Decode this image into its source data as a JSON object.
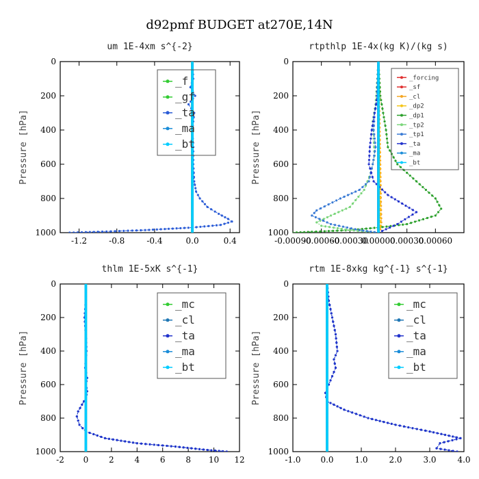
{
  "suptitle": "d92pmf  BUDGET at270E,14N",
  "chart_data": [
    {
      "type": "line",
      "title": "um  1E-4xm s^{-2}",
      "ylabel": "Pressure [hPa]",
      "xlabel": "",
      "xlim": [
        -1.4,
        0.5
      ],
      "ylim": [
        1000,
        0
      ],
      "xticks": [
        -1.2,
        -0.8,
        -0.4,
        0.0,
        0.4
      ],
      "xtick_labels": [
        "-1.2",
        "-0.8",
        "-0.4",
        "0.0",
        "0.4"
      ],
      "yticks": [
        0,
        200,
        400,
        600,
        800,
        1000
      ],
      "ytick_labels": [
        "0",
        "200",
        "400",
        "600",
        "800",
        "1000"
      ],
      "legend": [
        "_f",
        "_gf",
        "_ta",
        "_ma",
        "_bt"
      ],
      "legend_position": "top-right",
      "series": [
        {
          "name": "_f",
          "color": "#33cc33",
          "x": [
            0,
            0
          ],
          "y": [
            0,
            1000
          ]
        },
        {
          "name": "_gf",
          "color": "#33cc33",
          "x": [
            0,
            0
          ],
          "y": [
            0,
            1000
          ]
        },
        {
          "name": "_ta",
          "color": "#2b5cd6",
          "x": [
            0,
            0.01,
            -0.02,
            0.03,
            -0.04,
            0.02,
            0.0,
            0.01,
            0.01,
            0.02,
            0.04,
            0.08,
            0.16,
            0.28,
            0.38,
            0.42,
            0.3,
            0.0,
            -0.5,
            -1.0,
            -1.3
          ],
          "y": [
            0,
            100,
            150,
            200,
            250,
            300,
            400,
            500,
            600,
            700,
            760,
            800,
            850,
            890,
            920,
            935,
            955,
            970,
            985,
            995,
            1000
          ]
        },
        {
          "name": "_ma",
          "color": "#1a8cd8",
          "x": [
            0,
            0
          ],
          "y": [
            0,
            1000
          ]
        },
        {
          "name": "_bt",
          "color": "#00ccff",
          "x": [
            0,
            0
          ],
          "y": [
            0,
            1000
          ]
        }
      ]
    },
    {
      "type": "line",
      "title": "rtpthlp  1E-4x(kg K)/(kg s)",
      "ylabel": "Pressure [hPa]",
      "xlabel": "",
      "xlim": [
        -0.0009,
        0.0009
      ],
      "ylim": [
        1000,
        0
      ],
      "xticks": [
        -0.0009,
        -0.0006,
        -0.0003,
        0.0,
        0.0003,
        0.0006
      ],
      "xtick_labels": [
        "-0.00090",
        "-0.00060",
        "-0.00030",
        "0.00000",
        "0.00030",
        "0.00060"
      ],
      "yticks": [
        0,
        200,
        400,
        600,
        800,
        1000
      ],
      "ytick_labels": [
        "0",
        "200",
        "400",
        "600",
        "800",
        "1000"
      ],
      "legend": [
        "_forcing",
        "_sf",
        "_cl",
        "_dp2",
        "_dp1",
        "_tp2",
        "_tp1",
        "_ta",
        "_ma",
        "_bt"
      ],
      "legend_position": "top-right",
      "series": [
        {
          "name": "_forcing",
          "color": "#e03030",
          "x": [
            0,
            0
          ],
          "y": [
            0,
            1000
          ]
        },
        {
          "name": "_sf",
          "color": "#e03030",
          "x": [
            0,
            0
          ],
          "y": [
            0,
            1000
          ]
        },
        {
          "name": "_cl",
          "color": "#f5a623",
          "x": [
            0,
            3e-05,
            2e-05,
            0.0
          ],
          "y": [
            0,
            940,
            980,
            1000
          ]
        },
        {
          "name": "_dp2",
          "color": "#f5c518",
          "x": [
            0,
            2e-05,
            0.0
          ],
          "y": [
            0,
            960,
            1000
          ]
        },
        {
          "name": "_dp1",
          "color": "#2ca02c",
          "x": [
            0,
            2e-05,
            5e-05,
            8e-05,
            0.0001,
            0.0002,
            0.0004,
            0.0006,
            0.00066,
            0.0006,
            0.0003,
            0.0,
            -0.0003,
            -0.0007,
            -0.0009
          ],
          "y": [
            0,
            200,
            300,
            400,
            500,
            600,
            700,
            800,
            860,
            900,
            950,
            970,
            985,
            995,
            1000
          ]
        },
        {
          "name": "_tp2",
          "color": "#7cd67c",
          "x": [
            0,
            -3e-05,
            -6e-05,
            -5e-05,
            -4e-05,
            -8e-05,
            -0.00015,
            -0.0003,
            -0.0005,
            -0.00065,
            -0.0006,
            -0.0003,
            0.0
          ],
          "y": [
            0,
            250,
            350,
            450,
            550,
            650,
            750,
            850,
            900,
            940,
            960,
            985,
            1000
          ]
        },
        {
          "name": "_tp1",
          "color": "#3a7bd5",
          "x": [
            0,
            -2e-05,
            -4e-05,
            -5e-05,
            -3e-05,
            -6e-05,
            -0.0001,
            -0.0002,
            -0.0004,
            -0.00065,
            -0.0007,
            -0.0005,
            -0.0002,
            0.0
          ],
          "y": [
            0,
            250,
            300,
            400,
            500,
            600,
            700,
            750,
            800,
            870,
            900,
            950,
            985,
            1000
          ]
        },
        {
          "name": "_ta",
          "color": "#2233cc",
          "x": [
            0,
            -1e-05,
            -4e-05,
            -7e-05,
            -9e-05,
            -0.0001,
            -5e-05,
            0.0001,
            0.00025,
            0.0004,
            0.0002,
            0.0
          ],
          "y": [
            0,
            200,
            300,
            400,
            500,
            600,
            700,
            780,
            830,
            880,
            950,
            1000
          ]
        },
        {
          "name": "_ma",
          "color": "#1a8cd8",
          "x": [
            0,
            0
          ],
          "y": [
            0,
            1000
          ]
        },
        {
          "name": "_bt",
          "color": "#00ccff",
          "x": [
            0,
            0
          ],
          "y": [
            0,
            1000
          ]
        }
      ]
    },
    {
      "type": "line",
      "title": "thlm  1E-5xK s^{-1}",
      "ylabel": "Pressure [hPa]",
      "xlabel": "",
      "xlim": [
        -2,
        12
      ],
      "ylim": [
        1000,
        0
      ],
      "xticks": [
        -2,
        0,
        2,
        4,
        6,
        8,
        10,
        12
      ],
      "xtick_labels": [
        "-2",
        "0",
        "2",
        "4",
        "6",
        "8",
        "10",
        "12"
      ],
      "yticks": [
        0,
        200,
        400,
        600,
        800,
        1000
      ],
      "ytick_labels": [
        "0",
        "200",
        "400",
        "600",
        "800",
        "1000"
      ],
      "legend": [
        "_mc",
        "_cl",
        "_ta",
        "_ma",
        "_bt"
      ],
      "legend_position": "top-right",
      "series": [
        {
          "name": "_mc",
          "color": "#33cc33",
          "x": [
            0,
            0
          ],
          "y": [
            0,
            1000
          ]
        },
        {
          "name": "_cl",
          "color": "#1f77b4",
          "x": [
            0,
            0.0,
            -0.1,
            0.0,
            0.05,
            -0.05,
            0.1,
            0.0,
            0.1,
            0.0,
            -0.3,
            -0.6,
            -0.7,
            -0.5,
            0.0,
            1.5,
            4.0,
            7.0,
            9.5,
            11.0
          ],
          "y": [
            0,
            100,
            200,
            300,
            400,
            500,
            560,
            600,
            640,
            680,
            720,
            760,
            790,
            840,
            880,
            920,
            950,
            970,
            990,
            1000
          ]
        },
        {
          "name": "_ta",
          "color": "#2233cc",
          "x": [
            0,
            0.0,
            -0.1,
            0.0,
            0.05,
            -0.05,
            0.1,
            0.0,
            0.1,
            0.0,
            -0.3,
            -0.6,
            -0.7,
            -0.5,
            0.0,
            1.5,
            4.0,
            7.0,
            9.5,
            11.0
          ],
          "y": [
            0,
            100,
            200,
            300,
            400,
            500,
            560,
            600,
            640,
            680,
            720,
            760,
            790,
            840,
            880,
            920,
            950,
            970,
            990,
            1000
          ]
        },
        {
          "name": "_ma",
          "color": "#1a8cd8",
          "x": [
            0,
            0
          ],
          "y": [
            0,
            1000
          ]
        },
        {
          "name": "_bt",
          "color": "#00ccff",
          "x": [
            0,
            0
          ],
          "y": [
            0,
            1000
          ]
        }
      ]
    },
    {
      "type": "line",
      "title": "rtm  1E-8xkg kg^{-1} s^{-1}",
      "ylabel": "Pressure [hPa]",
      "xlabel": "",
      "xlim": [
        -1.0,
        4.0
      ],
      "ylim": [
        1000,
        0
      ],
      "xticks": [
        -1.0,
        0.0,
        1.0,
        2.0,
        3.0,
        4.0
      ],
      "xtick_labels": [
        "-1.0",
        "0.0",
        "1.0",
        "2.0",
        "3.0",
        "4.0"
      ],
      "yticks": [
        0,
        200,
        400,
        600,
        800,
        1000
      ],
      "ytick_labels": [
        "0",
        "200",
        "400",
        "600",
        "800",
        "1000"
      ],
      "legend": [
        "_mc",
        "_cl",
        "_ta",
        "_ma",
        "_bt"
      ],
      "legend_position": "top-right",
      "series": [
        {
          "name": "_mc",
          "color": "#33cc33",
          "x": [
            0,
            0
          ],
          "y": [
            0,
            1000
          ]
        },
        {
          "name": "_cl",
          "color": "#1f77b4",
          "x": [
            0,
            0.05,
            0.15,
            0.25,
            0.3,
            0.2,
            0.25,
            0.15,
            0.05,
            -0.05,
            0.0,
            0.5,
            1.2,
            2.0,
            3.0,
            3.9,
            3.3,
            3.2,
            3.8
          ],
          "y": [
            0,
            100,
            200,
            300,
            400,
            450,
            500,
            550,
            600,
            650,
            700,
            750,
            800,
            840,
            880,
            920,
            950,
            980,
            1000
          ]
        },
        {
          "name": "_ta",
          "color": "#2233cc",
          "x": [
            0,
            0.05,
            0.15,
            0.25,
            0.3,
            0.2,
            0.25,
            0.15,
            0.05,
            -0.05,
            0.0,
            0.5,
            1.2,
            2.0,
            3.0,
            3.9,
            3.3,
            3.2,
            3.8
          ],
          "y": [
            0,
            100,
            200,
            300,
            400,
            450,
            500,
            550,
            600,
            650,
            700,
            750,
            800,
            840,
            880,
            920,
            950,
            980,
            1000
          ]
        },
        {
          "name": "_ma",
          "color": "#1a8cd8",
          "x": [
            0,
            0
          ],
          "y": [
            0,
            1000
          ]
        },
        {
          "name": "_bt",
          "color": "#00ccff",
          "x": [
            0,
            0
          ],
          "y": [
            0,
            1000
          ]
        }
      ]
    }
  ]
}
